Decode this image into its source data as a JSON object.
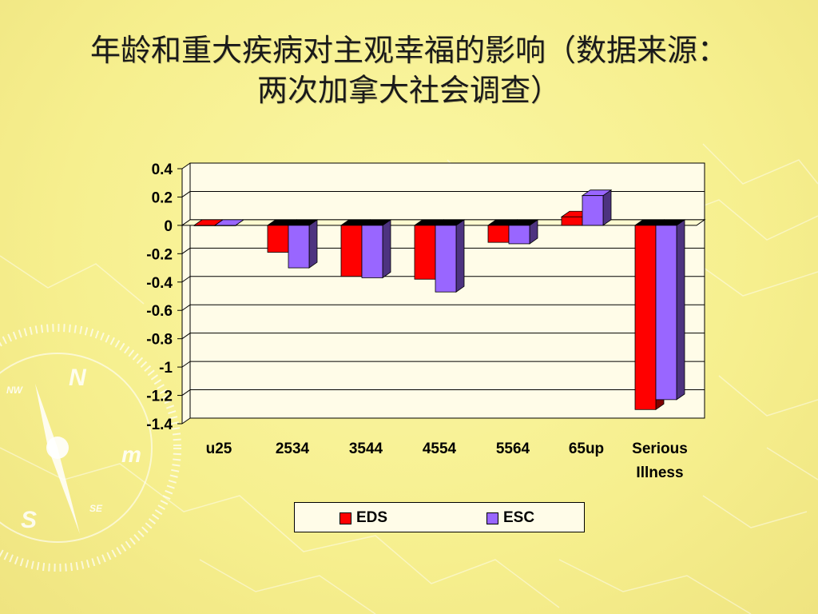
{
  "slide": {
    "title_line1": "年龄和重大疾病对主观幸福的影响（数据来源：",
    "title_line2": "两次加拿大社会调查）"
  },
  "decor": {
    "compass_letters": [
      "N",
      "m",
      "S",
      "NW",
      "SE"
    ]
  },
  "colors": {
    "eds": "#ff0000",
    "esc": "#9966ff",
    "eds_side": "#800000",
    "esc_side": "#4d3380",
    "plot_bg": "#fffce8"
  },
  "chart_data": {
    "type": "bar",
    "categories": [
      "u25",
      "2534",
      "3544",
      "4554",
      "5564",
      "65up",
      "Serious Illness"
    ],
    "series": [
      {
        "name": "EDS",
        "values": [
          0,
          -0.19,
          -0.36,
          -0.38,
          -0.12,
          0.06,
          -1.3
        ]
      },
      {
        "name": "ESC",
        "values": [
          0,
          -0.3,
          -0.37,
          -0.47,
          -0.13,
          0.21,
          -1.23
        ]
      }
    ],
    "ylim": [
      -1.4,
      0.4
    ],
    "y_ticks": [
      "0.4",
      "0.2",
      "0",
      "-0.2",
      "-0.4",
      "-0.6",
      "-0.8",
      "-1",
      "-1.2",
      "-1.4"
    ],
    "grid": true,
    "legend_position": "bottom",
    "style": "3d-clustered-column"
  }
}
